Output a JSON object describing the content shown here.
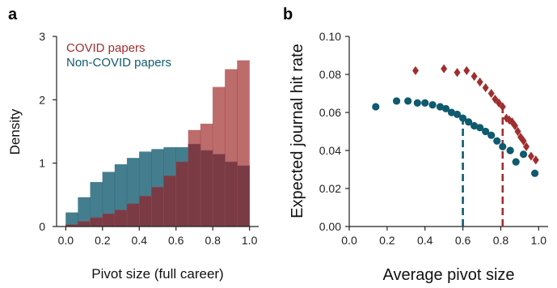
{
  "colors": {
    "covid": "#a12e2e",
    "noncovid": "#0f5a6e",
    "overlap": "#7a3b44"
  },
  "chart_data": [
    {
      "panel": "a",
      "type": "bar",
      "xlabel": "Pivot size (full career)",
      "ylabel": "Density",
      "xlim": [
        -0.05,
        1.05
      ],
      "ylim": [
        0,
        3
      ],
      "xticks": [
        "0.0",
        "0.2",
        "0.4",
        "0.6",
        "0.8",
        "1.0"
      ],
      "yticks": [
        "0",
        "1",
        "2",
        "3"
      ],
      "bin_edges": [
        0.0,
        0.0667,
        0.1333,
        0.2,
        0.2667,
        0.3333,
        0.4,
        0.4667,
        0.5333,
        0.6,
        0.6667,
        0.7333,
        0.8,
        0.8667,
        0.9333,
        1.0
      ],
      "legend": [
        "COVID papers",
        "Non-COVID papers"
      ],
      "legend_position": "top-left",
      "series": [
        {
          "name": "COVID papers",
          "values": [
            0.03,
            0.08,
            0.14,
            0.2,
            0.26,
            0.36,
            0.48,
            0.62,
            0.8,
            1.02,
            1.52,
            1.62,
            2.2,
            2.48,
            2.62
          ]
        },
        {
          "name": "Non-COVID papers",
          "values": [
            0.22,
            0.46,
            0.7,
            0.86,
            0.98,
            1.08,
            1.18,
            1.22,
            1.25,
            1.25,
            1.3,
            1.2,
            1.14,
            1.02,
            0.96
          ]
        }
      ]
    },
    {
      "panel": "b",
      "type": "scatter",
      "xlabel": "Average pivot size",
      "ylabel": "Expected journal hit rate",
      "xlim": [
        0.0,
        1.05
      ],
      "ylim": [
        0.0,
        0.1
      ],
      "xticks": [
        "0.0",
        "0.2",
        "0.4",
        "0.6",
        "0.8",
        "1.0"
      ],
      "yticks": [
        "0.00",
        "0.02",
        "0.04",
        "0.06",
        "0.08",
        "0.10"
      ],
      "series": [
        {
          "name": "COVID papers",
          "marker": "diamond",
          "x": [
            0.35,
            0.5,
            0.57,
            0.62,
            0.66,
            0.69,
            0.72,
            0.75,
            0.77,
            0.79,
            0.81,
            0.83,
            0.845,
            0.86,
            0.875,
            0.89,
            0.905,
            0.92,
            0.935,
            0.96,
            0.985
          ],
          "y": [
            0.082,
            0.083,
            0.081,
            0.082,
            0.079,
            0.076,
            0.073,
            0.07,
            0.067,
            0.065,
            0.063,
            0.057,
            0.056,
            0.055,
            0.053,
            0.05,
            0.047,
            0.045,
            0.042,
            0.037,
            0.035
          ],
          "median_line_x": 0.81
        },
        {
          "name": "Non-COVID papers",
          "marker": "circle",
          "x": [
            0.14,
            0.25,
            0.31,
            0.36,
            0.4,
            0.44,
            0.48,
            0.51,
            0.54,
            0.57,
            0.6,
            0.63,
            0.66,
            0.69,
            0.72,
            0.75,
            0.78,
            0.81,
            0.85,
            0.88,
            0.92,
            0.98
          ],
          "y": [
            0.063,
            0.066,
            0.066,
            0.065,
            0.065,
            0.064,
            0.063,
            0.062,
            0.06,
            0.059,
            0.057,
            0.055,
            0.053,
            0.052,
            0.05,
            0.048,
            0.045,
            0.042,
            0.04,
            0.034,
            0.038,
            0.028
          ],
          "median_line_x": 0.6
        }
      ]
    }
  ]
}
